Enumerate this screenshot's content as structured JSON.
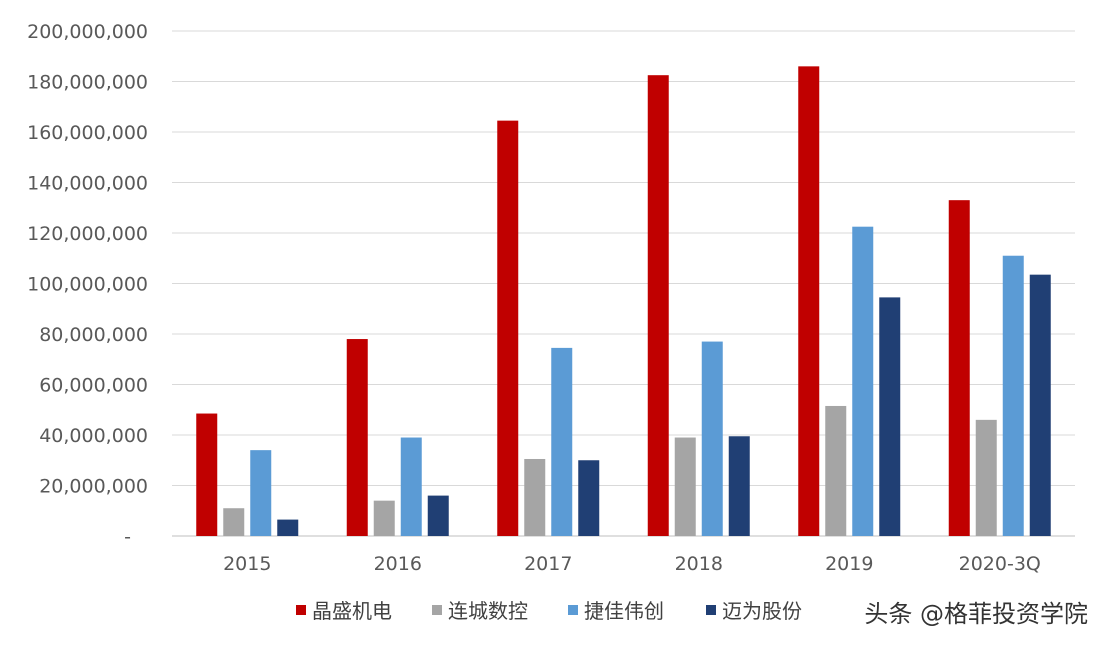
{
  "chart_data": {
    "type": "bar",
    "categories": [
      "2015",
      "2016",
      "2017",
      "2018",
      "2019",
      "2020-3Q"
    ],
    "series": [
      {
        "name": "晶盛机电",
        "color": "#c00000",
        "values": [
          48500000,
          78000000,
          164500000,
          182500000,
          186000000,
          133000000
        ]
      },
      {
        "name": "连城数控",
        "color": "#a5a5a5",
        "values": [
          11000000,
          14000000,
          30500000,
          39000000,
          51500000,
          46000000
        ]
      },
      {
        "name": "捷佳伟创",
        "color": "#5b9bd5",
        "values": [
          34000000,
          39000000,
          74500000,
          77000000,
          122500000,
          111000000
        ]
      },
      {
        "name": "迈为股份",
        "color": "#203f74",
        "values": [
          6500000,
          16000000,
          30000000,
          39500000,
          94500000,
          103500000
        ]
      }
    ],
    "ylim": [
      0,
      200000000
    ],
    "y_ticks": [
      {
        "value": 0,
        "label": "-"
      },
      {
        "value": 20000000,
        "label": "20,000,000"
      },
      {
        "value": 40000000,
        "label": "40,000,000"
      },
      {
        "value": 60000000,
        "label": "60,000,000"
      },
      {
        "value": 80000000,
        "label": "80,000,000"
      },
      {
        "value": 100000000,
        "label": "100,000,000"
      },
      {
        "value": 120000000,
        "label": "120,000,000"
      },
      {
        "value": 140000000,
        "label": "140,000,000"
      },
      {
        "value": 160000000,
        "label": "160,000,000"
      },
      {
        "value": 180000000,
        "label": "180,000,000"
      },
      {
        "value": 200000000,
        "label": "200,000,000"
      }
    ],
    "grid": true,
    "legend_position": "bottom"
  },
  "watermark": "头条 @格菲投资学院"
}
